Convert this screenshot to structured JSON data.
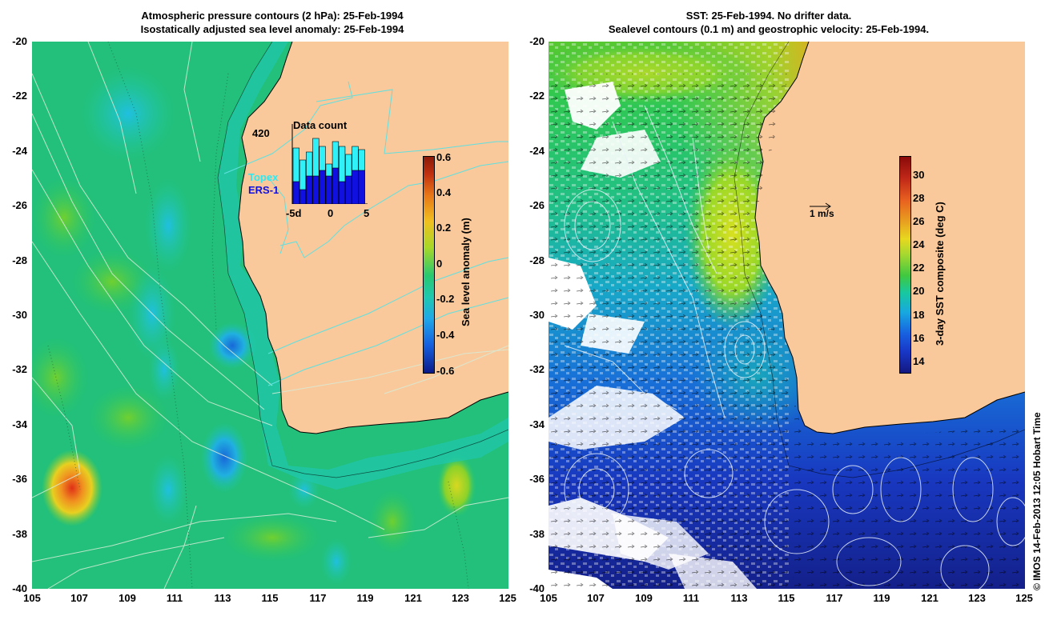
{
  "left": {
    "title_line1": "Atmospheric pressure contours (2 hPa): 25-Feb-1994",
    "title_line2": "Isostatically adjusted sea level anomaly: 25-Feb-1994",
    "colorbar_label": "Sea level anomaly (m)",
    "colorbar_ticks": [
      "0.6",
      "0.4",
      "0.2",
      "0",
      "-0.2",
      "-0.4",
      "-0.6"
    ],
    "inset": {
      "title": "Data count",
      "max_label": "420",
      "topex_label": "Topex",
      "ers_label": "ERS-1",
      "x_labels": [
        "-5d",
        "0",
        "5"
      ],
      "topex_bars": [
        0.7,
        0.55,
        0.65,
        0.82,
        0.72,
        0.5,
        0.78,
        0.72,
        0.62,
        0.72,
        0.68
      ],
      "ers_bars": [
        0.28,
        0.18,
        0.35,
        0.35,
        0.42,
        0.35,
        0.45,
        0.28,
        0.35,
        0.42,
        0.42
      ]
    }
  },
  "right": {
    "title_line1": "SST: 25-Feb-1994. No drifter data.",
    "title_line2": "Sealevel contours (0.1 m) and geostrophic velocity: 25-Feb-1994.",
    "colorbar_label": "3-day SST composite (deg C)",
    "colorbar_ticks": [
      "30",
      "28",
      "26",
      "24",
      "22",
      "20",
      "18",
      "16",
      "14"
    ],
    "velocity_scale_label": "1 m/s"
  },
  "y_ticks": [
    "-20",
    "-22",
    "-24",
    "-26",
    "-28",
    "-30",
    "-32",
    "-34",
    "-36",
    "-38",
    "-40"
  ],
  "x_ticks": [
    "105",
    "107",
    "109",
    "111",
    "113",
    "115",
    "117",
    "119",
    "121",
    "123",
    "125"
  ],
  "credit": "© IMOS 14-Feb-2013 12:05 Hobart Time",
  "colors": {
    "land": "#f9c99b",
    "ocean_mid": "#1fc07a",
    "sla_scale": [
      "#0a1a8a",
      "#1560e0",
      "#20c0e8",
      "#28c870",
      "#8ad22a",
      "#f0c020",
      "#e87818",
      "#b01808"
    ],
    "sst_scale": [
      "#1a1a8a",
      "#1838d8",
      "#1898e0",
      "#18c8a0",
      "#30c848",
      "#a8d830",
      "#e8d820",
      "#e89020",
      "#c02818",
      "#8a0a0a"
    ]
  }
}
